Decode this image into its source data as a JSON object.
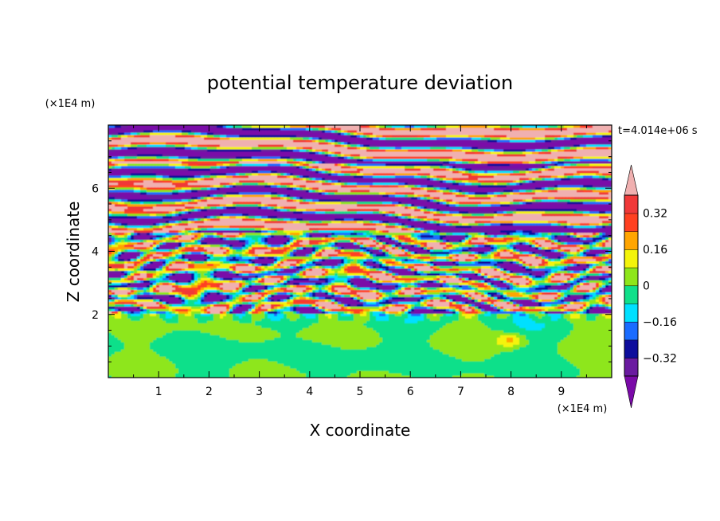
{
  "chart_data": {
    "type": "heatmap",
    "title": "potential temperature deviation",
    "xlabel": "X coordinate",
    "ylabel": "Z coordinate",
    "x_unit": "(×1E4 m)",
    "y_unit": "(×1E4 m)",
    "time_label": "t=4.014e+06 s",
    "xlim": [
      0,
      10
    ],
    "ylim": [
      0,
      8
    ],
    "x_ticks": [
      "1",
      "2",
      "3",
      "4",
      "5",
      "6",
      "7",
      "8",
      "9"
    ],
    "y_ticks": [
      "2",
      "4",
      "6"
    ],
    "colorbar": {
      "levels": [
        -0.4,
        -0.32,
        -0.24,
        -0.16,
        -0.08,
        0,
        0.08,
        0.16,
        0.24,
        0.32,
        0.4
      ],
      "tick_labels": [
        "0.32",
        "0.16",
        "0",
        "−0.16",
        "−0.32"
      ],
      "tick_values": [
        0.32,
        0.16,
        0,
        -0.16,
        -0.32
      ],
      "colors": [
        "#7a0aa8",
        "#6a1aa0",
        "#0d0d9c",
        "#1a6cff",
        "#00e0ff",
        "#10e08a",
        "#8ee61a",
        "#f4f40a",
        "#ffa500",
        "#ff4020",
        "#f03838",
        "#f0b0b0"
      ],
      "extend": "both"
    },
    "bands": [
      {
        "z": [
          6.8,
          7.8
        ],
        "pattern": "alternating pink / purple layers",
        "values": [
          0.45,
          -0.45
        ]
      },
      {
        "z": [
          4.6,
          6.8
        ],
        "pattern": "alternating pink / purple with cyan-green eddies",
        "values": [
          0.45,
          -0.45,
          0.0
        ]
      },
      {
        "z": [
          2.0,
          4.6
        ],
        "pattern": "turbulent mixed layers",
        "values": [
          0.3,
          -0.3,
          0.1,
          -0.1
        ]
      },
      {
        "z": [
          0.0,
          2.0
        ],
        "pattern": "green / yellow-green blobs",
        "values": [
          0.0,
          0.05
        ]
      }
    ],
    "features": [
      {
        "type": "yellow blob",
        "x": 8.0,
        "z": 1.2,
        "value": 0.16
      }
    ]
  }
}
